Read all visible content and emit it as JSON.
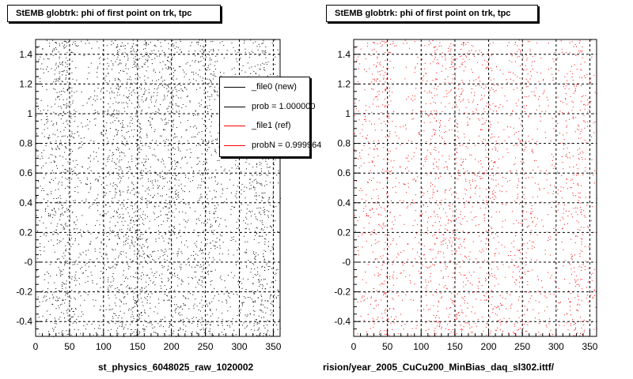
{
  "panels": [
    {
      "title": "StEMB globtrk: phi of first point on trk, tpc",
      "xlabel": "st_physics_6048025_raw_1020002",
      "color": "#000000"
    },
    {
      "title": "StEMB globtrk: phi of first point on trk, tpc",
      "xlabel": "rision/year_2005_CuCu200_MinBias_daq_sl302.ittf/",
      "color": "#ff0000"
    }
  ],
  "legend": {
    "entries": [
      {
        "label": "_file0 (new)",
        "color": "#000000"
      },
      {
        "label": "prob = 1.000000",
        "color": "#000000"
      },
      {
        "label": "_file1 (ref)",
        "color": "#ff0000"
      },
      {
        "label": "probN = 0.999964",
        "color": "#ff0000"
      }
    ]
  },
  "chart_data": [
    {
      "type": "scatter",
      "title": "StEMB globtrk: phi of first point on trk, tpc",
      "xlabel": "st_physics_6048025_raw_1020002",
      "ylabel": "",
      "xlim": [
        0,
        360
      ],
      "ylim": [
        -0.5,
        1.5
      ],
      "xticks": [
        0,
        50,
        100,
        150,
        200,
        250,
        300,
        350
      ],
      "yticks": [
        -0.4,
        -0.2,
        0,
        0.2,
        0.4,
        0.6,
        0.8,
        1.0,
        1.2,
        1.4
      ],
      "ytick_labels": [
        "-0.4",
        "-0.2",
        "-0",
        "0.2",
        "0.4",
        "0.6",
        "0.8",
        "1",
        "1.2",
        "1.4"
      ],
      "grid": true,
      "series": [
        {
          "name": "_file0 (new)",
          "color": "#000000"
        }
      ],
      "density_peaks_x": [
        40,
        120,
        155,
        200,
        250,
        330
      ]
    },
    {
      "type": "scatter",
      "title": "StEMB globtrk: phi of first point on trk, tpc",
      "xlabel": "rision/year_2005_CuCu200_MinBias_daq_sl302.ittf/",
      "ylabel": "",
      "xlim": [
        0,
        360
      ],
      "ylim": [
        -0.5,
        1.5
      ],
      "xticks": [
        0,
        50,
        100,
        150,
        200,
        250,
        300,
        350
      ],
      "yticks": [
        -0.4,
        -0.2,
        0,
        0.2,
        0.4,
        0.6,
        0.8,
        1.0,
        1.2,
        1.4
      ],
      "ytick_labels": [
        "-0.4",
        "-0.2",
        "-0",
        "0.2",
        "0.4",
        "0.6",
        "0.8",
        "1",
        "1.2",
        "1.4"
      ],
      "grid": true,
      "series": [
        {
          "name": "_file1 (ref)",
          "color": "#ff0000"
        }
      ],
      "density_peaks_x": [
        40,
        120,
        155,
        200,
        250,
        330
      ]
    }
  ]
}
